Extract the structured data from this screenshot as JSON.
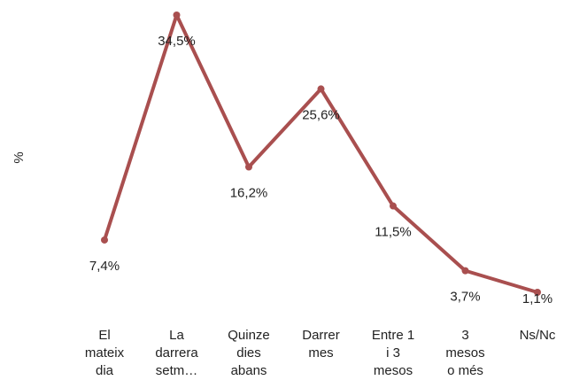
{
  "chart_data": {
    "type": "line",
    "y_label": "%",
    "categories": [
      "El\nmateix\ndia",
      "La\ndarrera\nsetm…",
      "Quinze\ndies\nabans",
      "Darrer\nmes",
      "Entre 1\ni 3\nmesos",
      "3\nmesos\no més",
      "Ns/Nc"
    ],
    "series": [
      {
        "color": "#a94f4f",
        "values": [
          7.4,
          34.5,
          16.2,
          25.6,
          11.5,
          3.7,
          1.1
        ],
        "value_labels": [
          "7,4%",
          "34,5%",
          "16,2%",
          "25,6%",
          "11,5%",
          "3,7%",
          "1,1%"
        ]
      }
    ]
  }
}
